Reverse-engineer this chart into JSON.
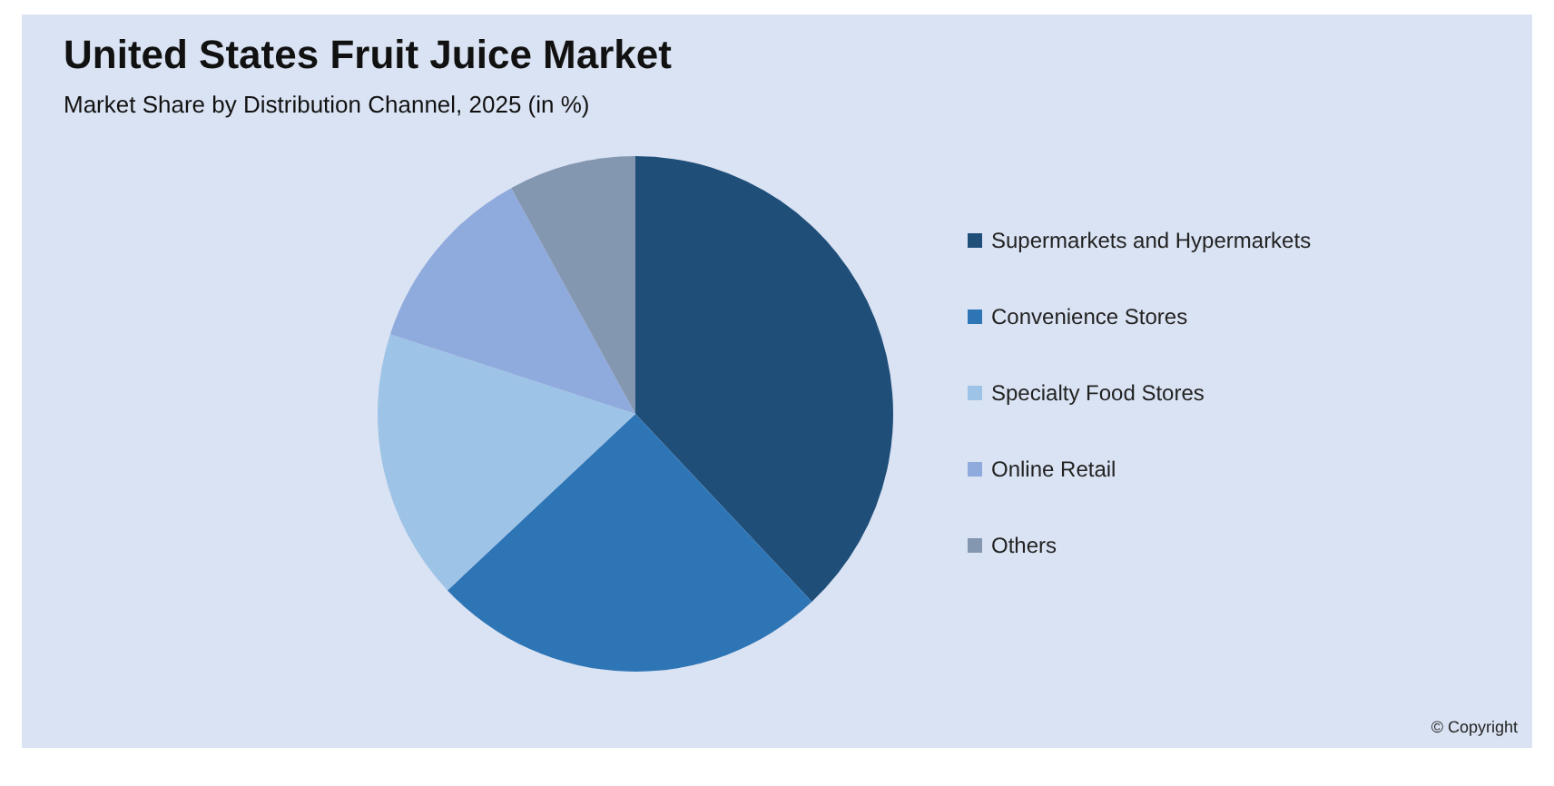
{
  "chart_data": {
    "type": "pie",
    "title": "United States Fruit Juice Market",
    "subtitle": "Market Share by Distribution Channel, 2025 (in %)",
    "categories": [
      "Supermarkets and Hypermarkets",
      "Convenience Stores",
      "Specialty Food Stores",
      "Online Retail",
      "Others"
    ],
    "values": [
      38,
      25,
      17,
      12,
      8
    ],
    "colors": [
      "#1f4e79",
      "#2e75b6",
      "#9dc3e6",
      "#8faadc",
      "#8497b0"
    ],
    "legend": "right",
    "annotations": [
      "© Copyright"
    ]
  }
}
